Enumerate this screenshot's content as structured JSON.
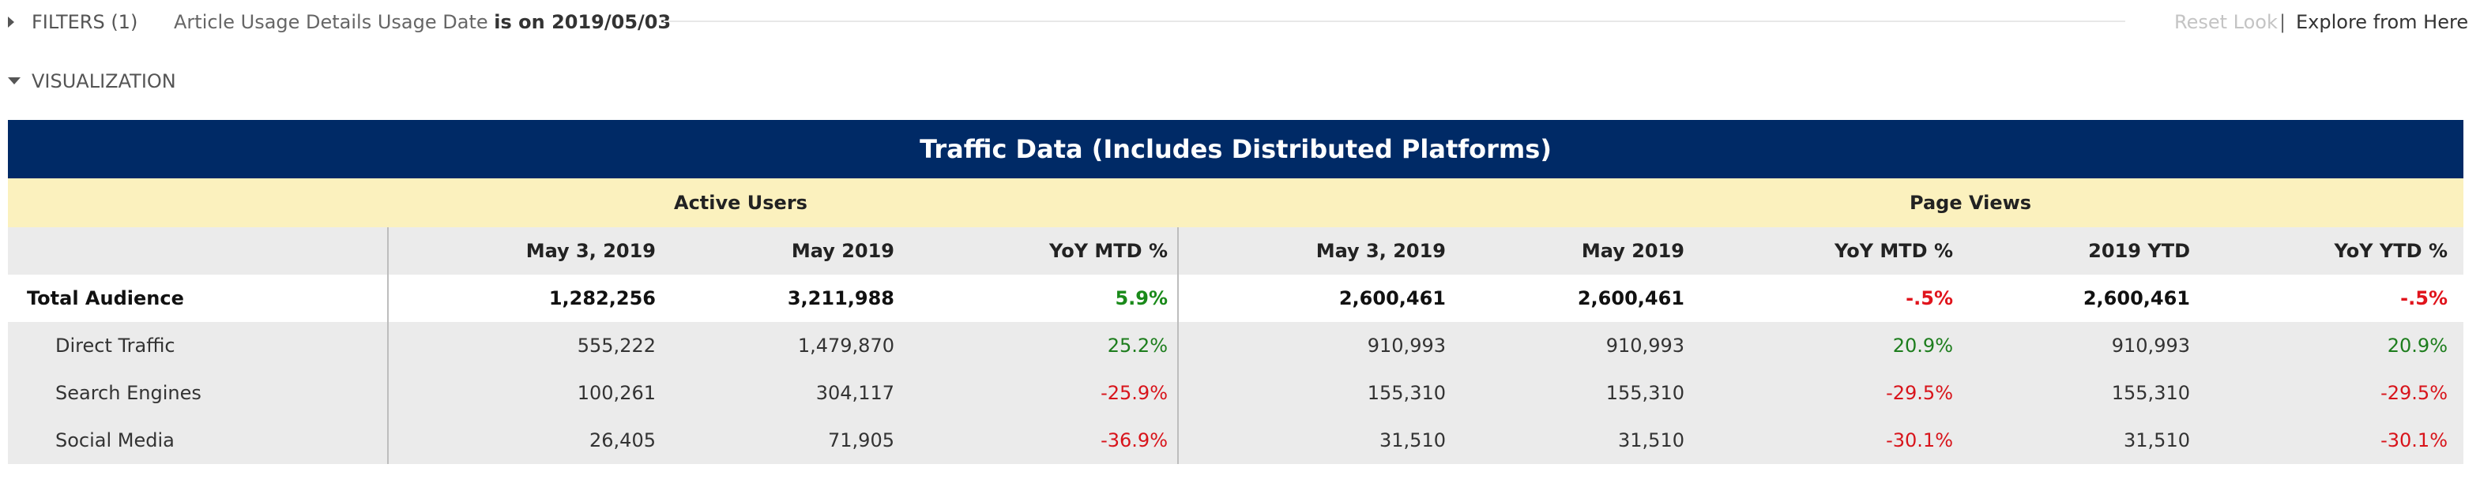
{
  "filters": {
    "label": "FILTERS (1)",
    "condition_prefix": "Article Usage Details Usage Date",
    "condition_value": "is on 2019/05/03",
    "reset_look": "Reset Look",
    "separator": "|",
    "explore": "Explore from Here"
  },
  "visualization": {
    "label": "VISUALIZATION"
  },
  "table": {
    "title": "Traffic Data (Includes Distributed Platforms)",
    "groups": {
      "active_users": "Active Users",
      "page_views": "Page Views"
    },
    "headers": [
      "May 3, 2019",
      "May 2019",
      "YoY MTD %",
      "May 3, 2019",
      "May 2019",
      "YoY MTD %",
      "2019 YTD",
      "YoY YTD %"
    ],
    "rows": [
      {
        "name": "Total Audience",
        "cells": [
          "1,282,256",
          "3,211,988",
          "5.9%",
          "2,600,461",
          "2,600,461",
          "-.5%",
          "2,600,461",
          "-.5%"
        ]
      },
      {
        "name": "Direct Traffic",
        "cells": [
          "555,222",
          "1,479,870",
          "25.2%",
          "910,993",
          "910,993",
          "20.9%",
          "910,993",
          "20.9%"
        ]
      },
      {
        "name": "Search Engines",
        "cells": [
          "100,261",
          "304,117",
          "-25.9%",
          "155,310",
          "155,310",
          "-29.5%",
          "155,310",
          "-29.5%"
        ]
      },
      {
        "name": "Social Media",
        "cells": [
          "26,405",
          "71,905",
          "-36.9%",
          "31,510",
          "31,510",
          "-30.1%",
          "31,510",
          "-30.1%"
        ]
      }
    ]
  },
  "colors": {
    "title_bar": "#002a66",
    "group_row": "#fbf1be",
    "positive": "#1d7d1d",
    "negative": "#d8141b"
  }
}
